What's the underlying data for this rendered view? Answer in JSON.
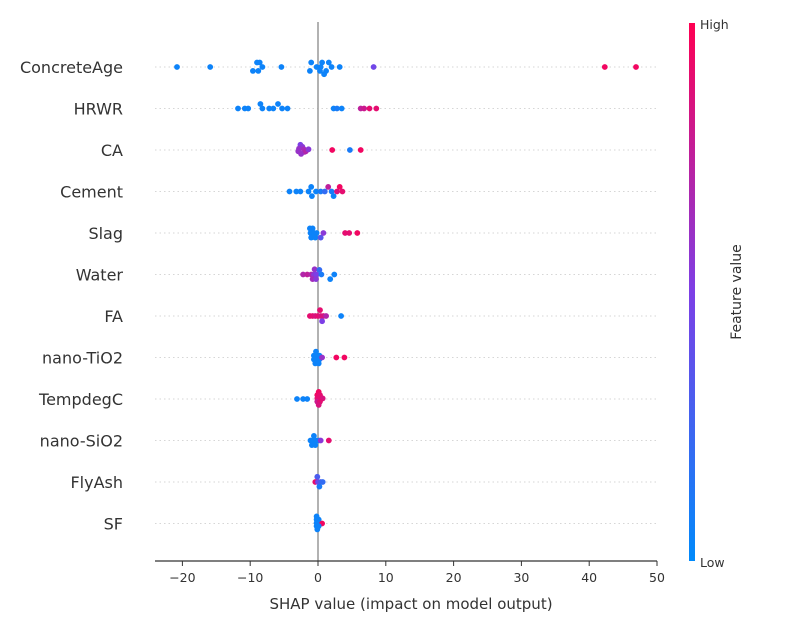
{
  "chart_data": {
    "type": "scatter",
    "subtype": "shap-beeswarm",
    "xlabel": "SHAP value (impact on model output)",
    "xlim": [
      -24,
      50
    ],
    "xticks": [
      -20,
      -10,
      0,
      10,
      20,
      30,
      40,
      50
    ],
    "features": [
      {
        "name": "ConcreteAge",
        "points": [
          {
            "x": -20.8,
            "y": 0.0,
            "c": 0.05
          },
          {
            "x": -15.9,
            "y": 0.0,
            "c": 0.05
          },
          {
            "x": -9.6,
            "y": -0.3,
            "c": 0.05
          },
          {
            "x": -9.0,
            "y": 0.35,
            "c": 0.05
          },
          {
            "x": -8.8,
            "y": -0.3,
            "c": 0.05
          },
          {
            "x": -8.6,
            "y": 0.35,
            "c": 0.05
          },
          {
            "x": -8.2,
            "y": 0.0,
            "c": 0.05
          },
          {
            "x": -5.4,
            "y": 0.0,
            "c": 0.05
          },
          {
            "x": -1.2,
            "y": -0.3,
            "c": 0.05
          },
          {
            "x": -1.0,
            "y": 0.35,
            "c": 0.05
          },
          {
            "x": -0.2,
            "y": 0.0,
            "c": 0.05
          },
          {
            "x": 0.3,
            "y": -0.3,
            "c": 0.05
          },
          {
            "x": 0.4,
            "y": 0.0,
            "c": 0.05
          },
          {
            "x": 0.6,
            "y": 0.35,
            "c": 0.05
          },
          {
            "x": 1.2,
            "y": -0.3,
            "c": 0.05
          },
          {
            "x": 0.9,
            "y": -0.55,
            "c": 0.05
          },
          {
            "x": 1.6,
            "y": 0.35,
            "c": 0.05
          },
          {
            "x": 2.0,
            "y": 0.0,
            "c": 0.05
          },
          {
            "x": 3.2,
            "y": 0.0,
            "c": 0.05
          },
          {
            "x": 8.2,
            "y": 0.0,
            "c": 0.45
          },
          {
            "x": 42.3,
            "y": 0.0,
            "c": 0.95
          },
          {
            "x": 46.9,
            "y": 0.0,
            "c": 0.95
          }
        ]
      },
      {
        "name": "HRWR",
        "points": [
          {
            "x": -11.8,
            "y": 0.0,
            "c": 0.05
          },
          {
            "x": -10.8,
            "y": 0.0,
            "c": 0.05
          },
          {
            "x": -10.3,
            "y": 0.0,
            "c": 0.05
          },
          {
            "x": -8.5,
            "y": 0.35,
            "c": 0.05
          },
          {
            "x": -8.2,
            "y": 0.0,
            "c": 0.05
          },
          {
            "x": -7.2,
            "y": 0.0,
            "c": 0.05
          },
          {
            "x": -6.6,
            "y": 0.0,
            "c": 0.05
          },
          {
            "x": -5.9,
            "y": 0.35,
            "c": 0.05
          },
          {
            "x": -5.3,
            "y": 0.0,
            "c": 0.05
          },
          {
            "x": -4.5,
            "y": 0.0,
            "c": 0.05
          },
          {
            "x": 2.3,
            "y": 0.0,
            "c": 0.05
          },
          {
            "x": 2.8,
            "y": 0.0,
            "c": 0.1
          },
          {
            "x": 3.5,
            "y": 0.0,
            "c": 0.05
          },
          {
            "x": 6.3,
            "y": 0.0,
            "c": 0.75
          },
          {
            "x": 6.8,
            "y": 0.0,
            "c": 0.8
          },
          {
            "x": 7.6,
            "y": 0.0,
            "c": 0.9
          },
          {
            "x": 8.6,
            "y": 0.0,
            "c": 0.9
          }
        ]
      },
      {
        "name": "CA",
        "points": [
          {
            "x": -2.6,
            "y": 0.4,
            "c": 0.5
          },
          {
            "x": -2.3,
            "y": 0.25,
            "c": 0.55
          },
          {
            "x": -2.8,
            "y": 0.1,
            "c": 0.6
          },
          {
            "x": -2.1,
            "y": 0.05,
            "c": 0.65
          },
          {
            "x": -2.9,
            "y": -0.1,
            "c": 0.6
          },
          {
            "x": -2.0,
            "y": -0.15,
            "c": 0.65
          },
          {
            "x": -2.5,
            "y": -0.3,
            "c": 0.6
          },
          {
            "x": -1.8,
            "y": -0.1,
            "c": 0.7
          },
          {
            "x": -1.4,
            "y": 0.05,
            "c": 0.55
          },
          {
            "x": 2.1,
            "y": 0.0,
            "c": 0.95
          },
          {
            "x": 4.7,
            "y": 0.0,
            "c": 0.1
          },
          {
            "x": 6.3,
            "y": 0.0,
            "c": 0.95
          }
        ]
      },
      {
        "name": "Cement",
        "points": [
          {
            "x": -4.2,
            "y": 0.0,
            "c": 0.05
          },
          {
            "x": -3.2,
            "y": 0.0,
            "c": 0.05
          },
          {
            "x": -2.6,
            "y": 0.0,
            "c": 0.05
          },
          {
            "x": -1.4,
            "y": 0.0,
            "c": 0.05
          },
          {
            "x": -1.0,
            "y": 0.35,
            "c": 0.05
          },
          {
            "x": -0.9,
            "y": -0.35,
            "c": 0.05
          },
          {
            "x": -0.3,
            "y": 0.0,
            "c": 0.05
          },
          {
            "x": 0.4,
            "y": 0.0,
            "c": 0.1
          },
          {
            "x": 1.0,
            "y": 0.0,
            "c": 0.2
          },
          {
            "x": 1.5,
            "y": 0.35,
            "c": 0.75
          },
          {
            "x": 2.0,
            "y": 0.0,
            "c": 0.1
          },
          {
            "x": 2.3,
            "y": -0.35,
            "c": 0.05
          },
          {
            "x": 2.8,
            "y": 0.0,
            "c": 0.85
          },
          {
            "x": 3.2,
            "y": 0.35,
            "c": 0.95
          },
          {
            "x": 3.6,
            "y": 0.0,
            "c": 0.9
          }
        ]
      },
      {
        "name": "Slag",
        "points": [
          {
            "x": -1.2,
            "y": 0.35,
            "c": 0.05
          },
          {
            "x": -0.8,
            "y": 0.35,
            "c": 0.05
          },
          {
            "x": -1.1,
            "y": 0.0,
            "c": 0.05
          },
          {
            "x": -0.6,
            "y": 0.0,
            "c": 0.05
          },
          {
            "x": -0.2,
            "y": 0.0,
            "c": 0.05
          },
          {
            "x": -1.0,
            "y": -0.35,
            "c": 0.05
          },
          {
            "x": -0.4,
            "y": -0.35,
            "c": 0.05
          },
          {
            "x": 0.4,
            "y": -0.35,
            "c": 0.35
          },
          {
            "x": 0.8,
            "y": 0.0,
            "c": 0.55
          },
          {
            "x": 4.0,
            "y": 0.0,
            "c": 0.9
          },
          {
            "x": 4.6,
            "y": 0.0,
            "c": 0.9
          },
          {
            "x": 5.8,
            "y": 0.0,
            "c": 0.95
          }
        ]
      },
      {
        "name": "Water",
        "points": [
          {
            "x": -0.5,
            "y": 0.4,
            "c": 0.6
          },
          {
            "x": -2.2,
            "y": 0.0,
            "c": 0.7
          },
          {
            "x": -1.6,
            "y": 0.0,
            "c": 0.75
          },
          {
            "x": -1.0,
            "y": 0.0,
            "c": 0.7
          },
          {
            "x": -0.6,
            "y": 0.0,
            "c": 0.55
          },
          {
            "x": -0.2,
            "y": 0.0,
            "c": 0.5
          },
          {
            "x": -0.8,
            "y": -0.35,
            "c": 0.65
          },
          {
            "x": -0.3,
            "y": -0.35,
            "c": 0.55
          },
          {
            "x": 0.2,
            "y": 0.35,
            "c": 0.2
          },
          {
            "x": 0.5,
            "y": 0.0,
            "c": 0.1
          },
          {
            "x": 1.8,
            "y": -0.35,
            "c": 0.05
          },
          {
            "x": 2.4,
            "y": 0.0,
            "c": 0.05
          }
        ]
      },
      {
        "name": "FA",
        "points": [
          {
            "x": 0.3,
            "y": 0.45,
            "c": 0.9
          },
          {
            "x": -1.2,
            "y": 0.0,
            "c": 0.9
          },
          {
            "x": -0.8,
            "y": 0.0,
            "c": 0.9
          },
          {
            "x": -0.4,
            "y": 0.0,
            "c": 0.85
          },
          {
            "x": 0.0,
            "y": 0.0,
            "c": 0.9
          },
          {
            "x": 0.4,
            "y": 0.0,
            "c": 0.85
          },
          {
            "x": 0.8,
            "y": 0.0,
            "c": 0.85
          },
          {
            "x": 1.2,
            "y": 0.0,
            "c": 0.7
          },
          {
            "x": 0.6,
            "y": -0.4,
            "c": 0.5
          },
          {
            "x": 3.4,
            "y": 0.0,
            "c": 0.05
          }
        ]
      },
      {
        "name": "nano-TiO2",
        "points": [
          {
            "x": -0.3,
            "y": 0.45,
            "c": 0.05
          },
          {
            "x": -0.6,
            "y": 0.15,
            "c": 0.05
          },
          {
            "x": -0.2,
            "y": 0.15,
            "c": 0.05
          },
          {
            "x": 0.2,
            "y": 0.15,
            "c": 0.05
          },
          {
            "x": -0.6,
            "y": -0.15,
            "c": 0.05
          },
          {
            "x": -0.2,
            "y": -0.15,
            "c": 0.05
          },
          {
            "x": 0.2,
            "y": -0.15,
            "c": 0.05
          },
          {
            "x": -0.4,
            "y": -0.45,
            "c": 0.05
          },
          {
            "x": 0.1,
            "y": -0.45,
            "c": 0.05
          },
          {
            "x": 0.6,
            "y": 0.0,
            "c": 0.6
          },
          {
            "x": 2.7,
            "y": 0.0,
            "c": 0.95
          },
          {
            "x": 3.9,
            "y": 0.0,
            "c": 0.95
          }
        ]
      },
      {
        "name": "TempdegC",
        "points": [
          {
            "x": 0.1,
            "y": 0.55,
            "c": 0.95
          },
          {
            "x": -0.1,
            "y": 0.3,
            "c": 0.95
          },
          {
            "x": 0.3,
            "y": 0.3,
            "c": 0.9
          },
          {
            "x": -0.1,
            "y": 0.05,
            "c": 0.9
          },
          {
            "x": 0.3,
            "y": 0.05,
            "c": 0.9
          },
          {
            "x": 0.7,
            "y": 0.05,
            "c": 0.85
          },
          {
            "x": -0.1,
            "y": -0.2,
            "c": 0.8
          },
          {
            "x": 0.3,
            "y": -0.2,
            "c": 0.9
          },
          {
            "x": 0.1,
            "y": -0.45,
            "c": 0.85
          },
          {
            "x": -3.1,
            "y": 0.0,
            "c": 0.05
          },
          {
            "x": -2.2,
            "y": 0.0,
            "c": 0.05
          },
          {
            "x": -1.6,
            "y": 0.0,
            "c": 0.05
          }
        ]
      },
      {
        "name": "nano-SiO2",
        "points": [
          {
            "x": -0.6,
            "y": 0.35,
            "c": 0.05
          },
          {
            "x": -1.1,
            "y": 0.0,
            "c": 0.05
          },
          {
            "x": -0.7,
            "y": 0.0,
            "c": 0.05
          },
          {
            "x": -0.3,
            "y": 0.0,
            "c": 0.05
          },
          {
            "x": 0.1,
            "y": 0.0,
            "c": 0.05
          },
          {
            "x": -0.9,
            "y": -0.35,
            "c": 0.05
          },
          {
            "x": -0.4,
            "y": -0.35,
            "c": 0.05
          },
          {
            "x": 0.4,
            "y": 0.0,
            "c": 0.55
          },
          {
            "x": 1.6,
            "y": 0.0,
            "c": 0.9
          }
        ]
      },
      {
        "name": "FlyAsh",
        "points": [
          {
            "x": -0.1,
            "y": 0.4,
            "c": 0.3
          },
          {
            "x": -0.4,
            "y": 0.0,
            "c": 0.9
          },
          {
            "x": 0.0,
            "y": 0.0,
            "c": 0.45
          },
          {
            "x": 0.4,
            "y": 0.0,
            "c": 0.3
          },
          {
            "x": 0.7,
            "y": 0.0,
            "c": 0.2
          },
          {
            "x": 0.2,
            "y": -0.35,
            "c": 0.1
          }
        ]
      },
      {
        "name": "SF",
        "points": [
          {
            "x": -0.2,
            "y": 0.55,
            "c": 0.05
          },
          {
            "x": -0.2,
            "y": 0.3,
            "c": 0.05
          },
          {
            "x": 0.1,
            "y": 0.3,
            "c": 0.05
          },
          {
            "x": -0.2,
            "y": 0.05,
            "c": 0.05
          },
          {
            "x": 0.1,
            "y": 0.05,
            "c": 0.05
          },
          {
            "x": 0.6,
            "y": 0.0,
            "c": 0.95
          },
          {
            "x": -0.2,
            "y": -0.2,
            "c": 0.05
          },
          {
            "x": 0.1,
            "y": -0.2,
            "c": 0.05
          },
          {
            "x": -0.1,
            "y": -0.45,
            "c": 0.05
          }
        ]
      }
    ],
    "colorbar": {
      "title": "Feature value",
      "high_label": "High",
      "low_label": "Low",
      "low_color": "#008afb",
      "mid_color": "#7d3fe6",
      "high_color": "#ff0052"
    },
    "grid": "dotted horizontal row guides",
    "zero_line": true
  }
}
